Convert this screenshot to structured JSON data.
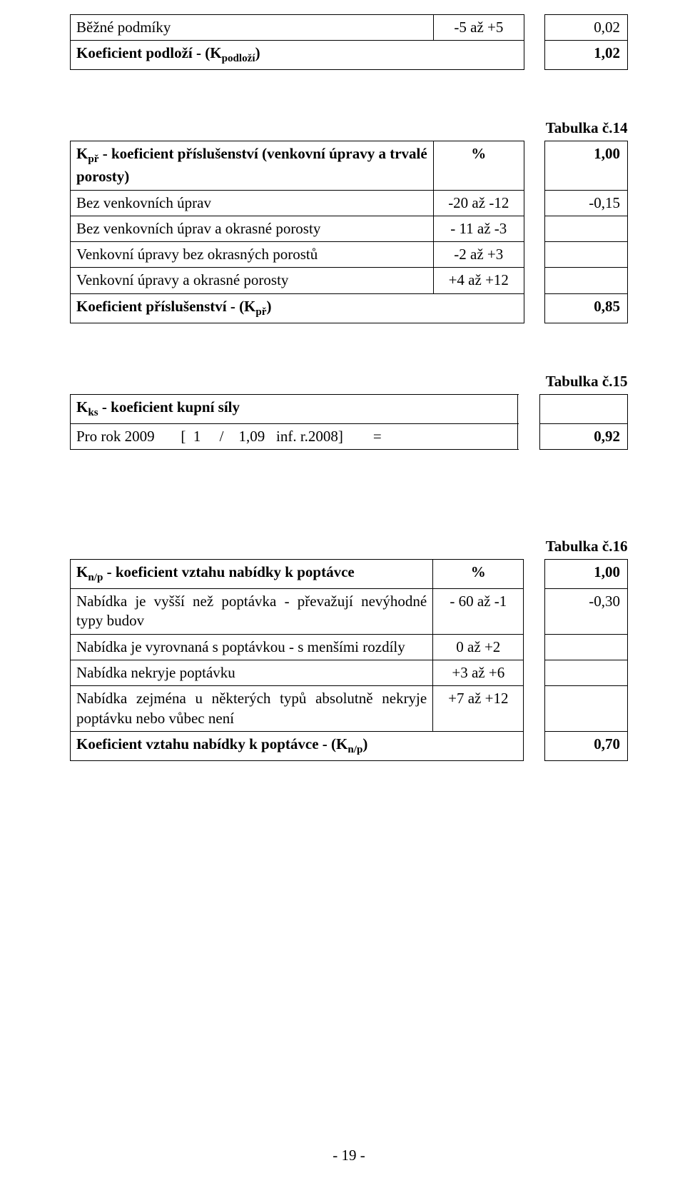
{
  "t13": {
    "rows": [
      {
        "label": "Běžné podmíky",
        "mid": "-5 až +5",
        "val": "0,02"
      },
      {
        "label_html": "Koeficient podloží - (K<sub>podloží</sub>)",
        "val": "1,02",
        "bold": true
      }
    ]
  },
  "t14": {
    "caption": "Tabulka č.14",
    "header_html": "K<sub>př</sub> - koeficient příslušenství (venkovní úpravy a trvalé porosty)",
    "header_mid": "%",
    "header_val": "1,00",
    "rows": [
      {
        "label": "Bez venkovních úprav",
        "mid": "-20 až -12",
        "val": "-0,15"
      },
      {
        "label": "Bez venkovních úprav a okrasné porosty",
        "mid": "- 11 až -3",
        "val": ""
      },
      {
        "label": "Venkovní úpravy bez okrasných porostů",
        "mid": "-2 až +3",
        "val": ""
      },
      {
        "label": "Venkovní úpravy a okrasné porosty",
        "mid": "+4 až +12",
        "val": ""
      }
    ],
    "footer_html": "Koeficient příslušenství - (K<sub>př</sub>)",
    "footer_val": "0,85"
  },
  "t15": {
    "caption": "Tabulka č.15",
    "row1_html": "K<sub>ks</sub> - koeficient kupní síly",
    "row2_label": "Pro rok 2009       [  1     /    1,09   inf. r.2008]        =",
    "row2_val": "0,92"
  },
  "t16": {
    "caption": "Tabulka č.16",
    "header_html": "K<sub>n/p</sub> - koeficient vztahu nabídky k poptávce",
    "header_mid": "%",
    "header_val": "1,00",
    "rows": [
      {
        "label": "Nabídka je vyšší než poptávka - převažují nevýhodné typy budov",
        "mid": "- 60 až -1",
        "val": "-0,30"
      },
      {
        "label": "Nabídka je vyrovnaná s poptávkou - s menšími rozdíly",
        "mid": "0 až +2",
        "val": ""
      },
      {
        "label": "Nabídka nekryje poptávku",
        "mid": "+3 až +6",
        "val": ""
      },
      {
        "label": "Nabídka zejména u některých typů absolutně nekryje poptávku nebo vůbec není",
        "mid": "+7 až +12",
        "val": ""
      }
    ],
    "footer_html": "Koeficient vztahu nabídky k poptávce - (K<sub>n/p</sub>)",
    "footer_val": "0,70"
  },
  "page_footer": "- 19 -"
}
